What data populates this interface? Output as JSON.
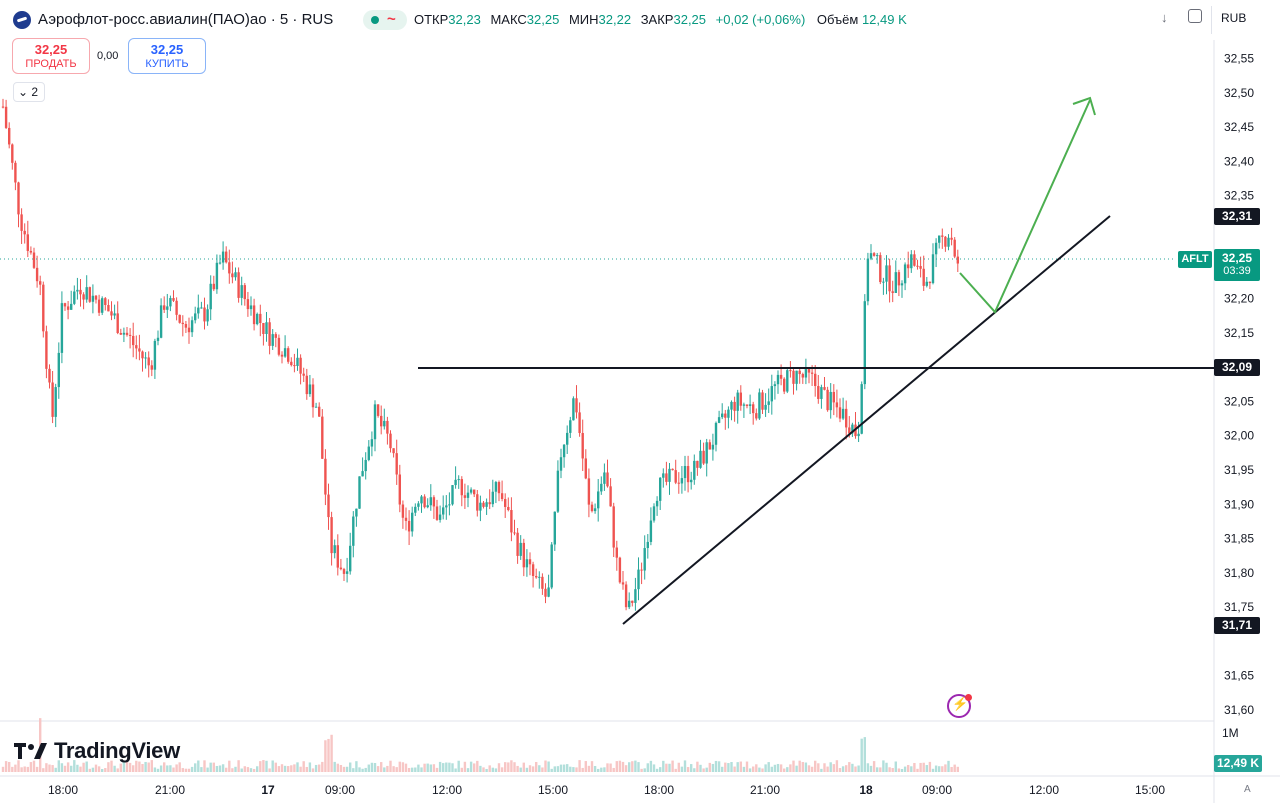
{
  "header": {
    "title": "Аэрофлот-росс.авиалин(ПАО)ао · 5 · RUS",
    "status_icon": "~",
    "ohlc": [
      {
        "key": "ОТКР",
        "value": "32,23"
      },
      {
        "key": "МАКС",
        "value": "32,25"
      },
      {
        "key": "МИН",
        "value": "32,22"
      },
      {
        "key": "ЗАКР",
        "value": "32,25"
      }
    ],
    "change": "+0,02 (+0,06%)",
    "volume_label": "Объём",
    "volume_value": "12,49 K",
    "currency": "RUB"
  },
  "trade": {
    "sell_price": "32,25",
    "sell_label": "ПРОДАТЬ",
    "buy_price": "32,25",
    "buy_label": "КУПИТЬ",
    "spread": "0,00"
  },
  "collapse_label": "2",
  "chart_data": {
    "type": "candlestick",
    "symbol": "AFLT",
    "interval": "5",
    "y_ticks": [
      "32,55",
      "32,50",
      "32,45",
      "32,40",
      "32,35",
      "32,31",
      "32,20",
      "32,15",
      "32,09",
      "32,05",
      "32,00",
      "31,95",
      "31,90",
      "31,85",
      "31,80",
      "31,75",
      "31,71",
      "31,65",
      "31,60"
    ],
    "ylim": [
      31.58,
      32.58
    ],
    "x_ticks": [
      "18:00",
      "21:00",
      "17",
      "09:00",
      "12:00",
      "15:00",
      "18:00",
      "21:00",
      "18",
      "09:00",
      "12:00",
      "15:00"
    ],
    "current_price": "32,25",
    "countdown": "03:39",
    "price_markers": {
      "high": "32,31",
      "level": "32,09",
      "low": "31,71"
    },
    "volume_axis_label": "1M",
    "last_volume": "12,49 K",
    "axis_mode": "A",
    "colors": {
      "up": "#26a69a",
      "down": "#ef5350",
      "forecast": "#4caf50",
      "lines": "#131722"
    }
  },
  "branding": {
    "logo_text": "TradingView"
  }
}
